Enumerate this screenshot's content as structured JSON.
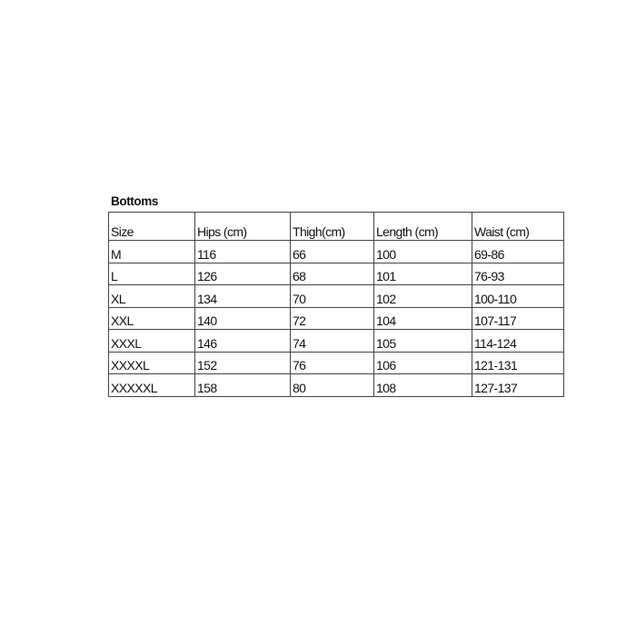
{
  "title": "Bottoms",
  "table": {
    "headers": [
      "Size",
      "Hips (cm)",
      "Thigh(cm)",
      "Length (cm)",
      "Waist (cm)"
    ],
    "rows": [
      [
        "M",
        "116",
        "66",
        "100",
        "69-86"
      ],
      [
        "L",
        "126",
        "68",
        "101",
        "76-93"
      ],
      [
        "XL",
        "134",
        "70",
        "102",
        "100-110"
      ],
      [
        "XXL",
        "140",
        "72",
        "104",
        "107-117"
      ],
      [
        "XXXL",
        "146",
        "74",
        "105",
        "114-124"
      ],
      [
        "XXXXL",
        "152",
        "76",
        "106",
        "121-131"
      ],
      [
        "XXXXXL",
        "158",
        "80",
        "108",
        "127-137"
      ]
    ]
  }
}
